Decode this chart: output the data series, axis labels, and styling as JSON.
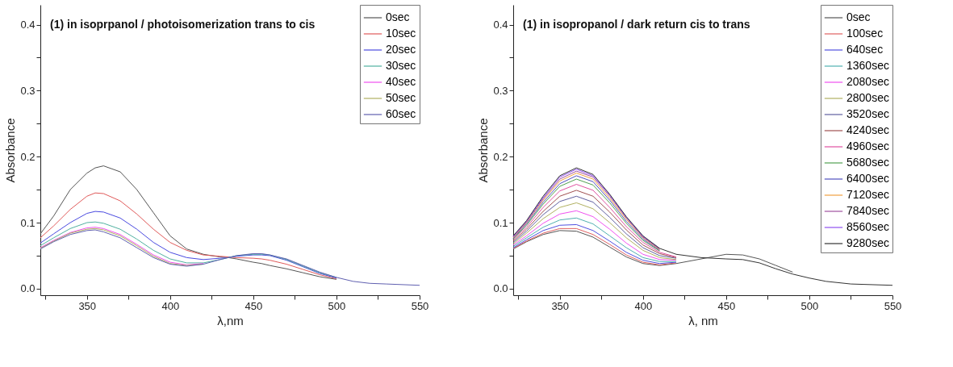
{
  "chart_data": [
    {
      "type": "line",
      "title": "(1) in isoprpanol / photoisomerization trans to cis",
      "xlabel": "λ,nm",
      "ylabel": "Absorbance",
      "legend": "top right",
      "xlim": [
        322,
        550
      ],
      "ylim": [
        -0.01,
        0.43
      ],
      "xticks": [
        {
          "value": 325,
          "label": null
        },
        350,
        {
          "value": 375,
          "label": null
        },
        400,
        {
          "value": 425,
          "label": null
        },
        450,
        {
          "value": 475,
          "label": null
        },
        500,
        {
          "value": 525,
          "label": null
        },
        550
      ],
      "yticks": [
        {
          "value": 0,
          "label": "0.0"
        },
        {
          "value": 0.05,
          "label": null
        },
        {
          "value": 0.1,
          "label": "0.1"
        },
        {
          "value": 0.15,
          "label": null
        },
        {
          "value": 0.2,
          "label": "0.2"
        },
        {
          "value": 0.25,
          "label": null
        },
        {
          "value": 0.3,
          "label": "0.3"
        },
        {
          "value": 0.35,
          "label": null
        },
        {
          "value": 0.4,
          "label": "0.4"
        }
      ],
      "x": [
        322,
        330,
        340,
        350,
        355,
        360,
        370,
        380,
        390,
        400,
        410,
        420,
        430,
        435,
        440,
        450,
        455,
        460,
        470,
        480,
        490,
        500,
        510,
        520,
        530,
        550
      ],
      "series": [
        {
          "name": "0sec",
          "color": "#555555",
          "x": [
            322,
            330,
            340,
            350,
            355,
            360,
            370,
            380,
            390,
            400,
            410,
            420,
            430,
            435,
            440,
            450,
            455,
            460,
            470,
            480,
            490,
            500
          ],
          "values": [
            0.083,
            0.11,
            0.15,
            0.175,
            0.183,
            0.186,
            0.177,
            0.15,
            0.115,
            0.08,
            0.06,
            0.052,
            0.048,
            0.047,
            0.045,
            0.04,
            0.038,
            0.035,
            0.03,
            0.024,
            0.018,
            0.014
          ]
        },
        {
          "name": "10sec",
          "color": "#e05a5a",
          "x": [
            322,
            330,
            340,
            350,
            355,
            360,
            370,
            380,
            390,
            400,
            410,
            420,
            430,
            435,
            440,
            450,
            455,
            460,
            470,
            480,
            490,
            500
          ],
          "values": [
            0.077,
            0.095,
            0.12,
            0.14,
            0.145,
            0.144,
            0.133,
            0.113,
            0.09,
            0.07,
            0.058,
            0.051,
            0.049,
            0.048,
            0.047,
            0.046,
            0.045,
            0.043,
            0.037,
            0.029,
            0.021,
            0.015
          ]
        },
        {
          "name": "20sec",
          "color": "#4a4ae0",
          "x": [
            322,
            330,
            340,
            350,
            355,
            360,
            370,
            380,
            390,
            400,
            410,
            420,
            430,
            435,
            440,
            450,
            455,
            460,
            470,
            480,
            490,
            500
          ],
          "values": [
            0.069,
            0.083,
            0.1,
            0.114,
            0.117,
            0.116,
            0.107,
            0.09,
            0.07,
            0.055,
            0.047,
            0.044,
            0.046,
            0.047,
            0.049,
            0.051,
            0.051,
            0.05,
            0.043,
            0.033,
            0.023,
            0.016
          ]
        },
        {
          "name": "30sec",
          "color": "#50b0a0",
          "x": [
            322,
            330,
            340,
            350,
            355,
            360,
            370,
            380,
            390,
            400,
            410,
            420,
            430,
            435,
            440,
            450,
            455,
            460,
            470,
            480,
            490,
            500
          ],
          "values": [
            0.065,
            0.077,
            0.091,
            0.1,
            0.101,
            0.099,
            0.09,
            0.075,
            0.058,
            0.045,
            0.039,
            0.039,
            0.044,
            0.047,
            0.05,
            0.052,
            0.052,
            0.051,
            0.044,
            0.034,
            0.024,
            0.017
          ]
        },
        {
          "name": "40sec",
          "color": "#f050f0",
          "x": [
            322,
            330,
            340,
            350,
            355,
            360,
            370,
            380,
            390,
            400,
            410,
            420
          ],
          "values": [
            0.062,
            0.073,
            0.085,
            0.092,
            0.093,
            0.091,
            0.082,
            0.067,
            0.051,
            0.04,
            0.036,
            0.038
          ]
        },
        {
          "name": "50sec",
          "color": "#b0b060",
          "x": [
            322,
            330,
            340,
            350,
            355,
            360,
            370,
            380,
            390,
            400,
            410,
            420
          ],
          "values": [
            0.061,
            0.072,
            0.084,
            0.09,
            0.091,
            0.089,
            0.08,
            0.065,
            0.049,
            0.038,
            0.035,
            0.037
          ]
        },
        {
          "name": "60sec",
          "color": "#6060b0",
          "values": [
            0.06,
            0.071,
            0.082,
            0.088,
            0.089,
            0.086,
            0.077,
            0.062,
            0.047,
            0.037,
            0.034,
            0.037,
            0.044,
            0.047,
            0.05,
            0.053,
            0.053,
            0.051,
            0.045,
            0.035,
            0.025,
            0.017,
            0.011,
            0.008,
            0.007,
            0.005
          ]
        }
      ]
    },
    {
      "type": "line",
      "title": "(1) in isopropanol / dark return cis to trans",
      "xlabel": "λ, nm",
      "ylabel": "Absorbance",
      "legend": "top right",
      "xlim": [
        322,
        550
      ],
      "ylim": [
        -0.01,
        0.43
      ],
      "xticks": [
        {
          "value": 325,
          "label": null
        },
        350,
        {
          "value": 375,
          "label": null
        },
        400,
        {
          "value": 425,
          "label": null
        },
        450,
        {
          "value": 475,
          "label": null
        },
        500,
        {
          "value": 525,
          "label": null
        },
        550
      ],
      "yticks": [
        {
          "value": 0,
          "label": "0.0"
        },
        {
          "value": 0.05,
          "label": null
        },
        {
          "value": 0.1,
          "label": "0.1"
        },
        {
          "value": 0.15,
          "label": null
        },
        {
          "value": 0.2,
          "label": "0.2"
        },
        {
          "value": 0.25,
          "label": null
        },
        {
          "value": 0.3,
          "label": "0.3"
        },
        {
          "value": 0.35,
          "label": null
        },
        {
          "value": 0.4,
          "label": "0.4"
        }
      ],
      "x": [
        322,
        330,
        340,
        350,
        360,
        370,
        380,
        390,
        400,
        410,
        420,
        435,
        450,
        460,
        470,
        480,
        490,
        500,
        510,
        525,
        550
      ],
      "series": [
        {
          "name": "0sec",
          "color": "#555555",
          "x": [
            322,
            330,
            340,
            350,
            360,
            370,
            380,
            390,
            400,
            410,
            420,
            450,
            460,
            470,
            480,
            490
          ],
          "values": [
            0.06,
            0.071,
            0.082,
            0.088,
            0.087,
            0.078,
            0.063,
            0.048,
            0.038,
            0.035,
            0.038,
            0.052,
            0.051,
            0.045,
            0.035,
            0.025
          ]
        },
        {
          "name": "100sec",
          "color": "#e06060",
          "x": [
            322,
            330,
            340,
            350,
            360,
            370,
            380,
            390,
            400,
            410,
            420
          ],
          "values": [
            0.061,
            0.072,
            0.084,
            0.091,
            0.091,
            0.082,
            0.067,
            0.051,
            0.04,
            0.036,
            0.039
          ]
        },
        {
          "name": "640sec",
          "color": "#5050e0",
          "x": [
            322,
            330,
            340,
            350,
            360,
            370,
            380,
            390,
            400,
            410,
            420
          ],
          "values": [
            0.062,
            0.074,
            0.088,
            0.096,
            0.097,
            0.088,
            0.072,
            0.055,
            0.043,
            0.038,
            0.04
          ]
        },
        {
          "name": "1360sec",
          "color": "#50b0b0",
          "x": [
            322,
            330,
            340,
            350,
            360,
            370,
            380,
            390,
            400,
            410,
            420
          ],
          "values": [
            0.064,
            0.077,
            0.093,
            0.104,
            0.107,
            0.098,
            0.08,
            0.062,
            0.047,
            0.041,
            0.041
          ]
        },
        {
          "name": "2080sec",
          "color": "#f050f0",
          "x": [
            322,
            330,
            340,
            350,
            360,
            370,
            380,
            390,
            400,
            410,
            420
          ],
          "values": [
            0.066,
            0.08,
            0.099,
            0.113,
            0.118,
            0.109,
            0.09,
            0.069,
            0.052,
            0.044,
            0.043
          ]
        },
        {
          "name": "2800sec",
          "color": "#b0b060",
          "x": [
            322,
            330,
            340,
            350,
            360,
            370,
            380,
            390,
            400,
            410,
            420
          ],
          "values": [
            0.068,
            0.084,
            0.106,
            0.123,
            0.13,
            0.121,
            0.1,
            0.077,
            0.058,
            0.047,
            0.044
          ]
        },
        {
          "name": "3520sec",
          "color": "#6060a0",
          "x": [
            322,
            330,
            340,
            350,
            360,
            370,
            380,
            390,
            400,
            410,
            420
          ],
          "values": [
            0.07,
            0.087,
            0.112,
            0.132,
            0.14,
            0.131,
            0.108,
            0.083,
            0.062,
            0.05,
            0.046
          ]
        },
        {
          "name": "4240sec",
          "color": "#a05050",
          "x": [
            322,
            330,
            340,
            350,
            360,
            370,
            380,
            390,
            400,
            410,
            420
          ],
          "values": [
            0.072,
            0.09,
            0.117,
            0.14,
            0.149,
            0.14,
            0.116,
            0.089,
            0.066,
            0.053,
            0.047
          ]
        },
        {
          "name": "4960sec",
          "color": "#e050a0",
          "x": [
            322,
            330,
            340,
            350,
            360,
            370,
            380,
            390,
            400,
            410,
            420
          ],
          "values": [
            0.074,
            0.093,
            0.123,
            0.148,
            0.158,
            0.149,
            0.123,
            0.094,
            0.07,
            0.055,
            0.048
          ]
        },
        {
          "name": "5680sec",
          "color": "#50a050",
          "x": [
            322,
            330,
            340,
            350,
            360,
            370,
            380,
            390,
            400,
            410
          ],
          "values": [
            0.075,
            0.096,
            0.128,
            0.155,
            0.166,
            0.157,
            0.13,
            0.099,
            0.073,
            0.057
          ]
        },
        {
          "name": "6400sec",
          "color": "#5050c0",
          "x": [
            322,
            330,
            340,
            350,
            360,
            370,
            380,
            390,
            400,
            410
          ],
          "values": [
            0.076,
            0.098,
            0.131,
            0.159,
            0.171,
            0.162,
            0.134,
            0.102,
            0.075,
            0.058
          ]
        },
        {
          "name": "7120sec",
          "color": "#f0a040",
          "x": [
            322,
            330,
            340,
            350,
            360,
            370,
            380,
            390,
            400,
            410
          ],
          "values": [
            0.077,
            0.1,
            0.134,
            0.163,
            0.175,
            0.166,
            0.137,
            0.105,
            0.077,
            0.059
          ]
        },
        {
          "name": "7840sec",
          "color": "#a050a0",
          "x": [
            322,
            330,
            340,
            350,
            360,
            370,
            380,
            390,
            400,
            410
          ],
          "values": [
            0.078,
            0.101,
            0.136,
            0.166,
            0.178,
            0.169,
            0.14,
            0.107,
            0.078,
            0.06
          ]
        },
        {
          "name": "8560sec",
          "color": "#9050f0",
          "x": [
            322,
            330,
            340,
            350,
            360,
            370,
            380,
            390,
            400,
            410
          ],
          "values": [
            0.079,
            0.102,
            0.138,
            0.169,
            0.181,
            0.171,
            0.142,
            0.108,
            0.079,
            0.061
          ]
        },
        {
          "name": "9280sec",
          "color": "#333333",
          "values": [
            0.08,
            0.103,
            0.14,
            0.171,
            0.183,
            0.173,
            0.143,
            0.109,
            0.08,
            0.061,
            0.052,
            0.047,
            0.045,
            0.044,
            0.039,
            0.03,
            0.022,
            0.016,
            0.011,
            0.007,
            0.005
          ]
        }
      ]
    }
  ]
}
